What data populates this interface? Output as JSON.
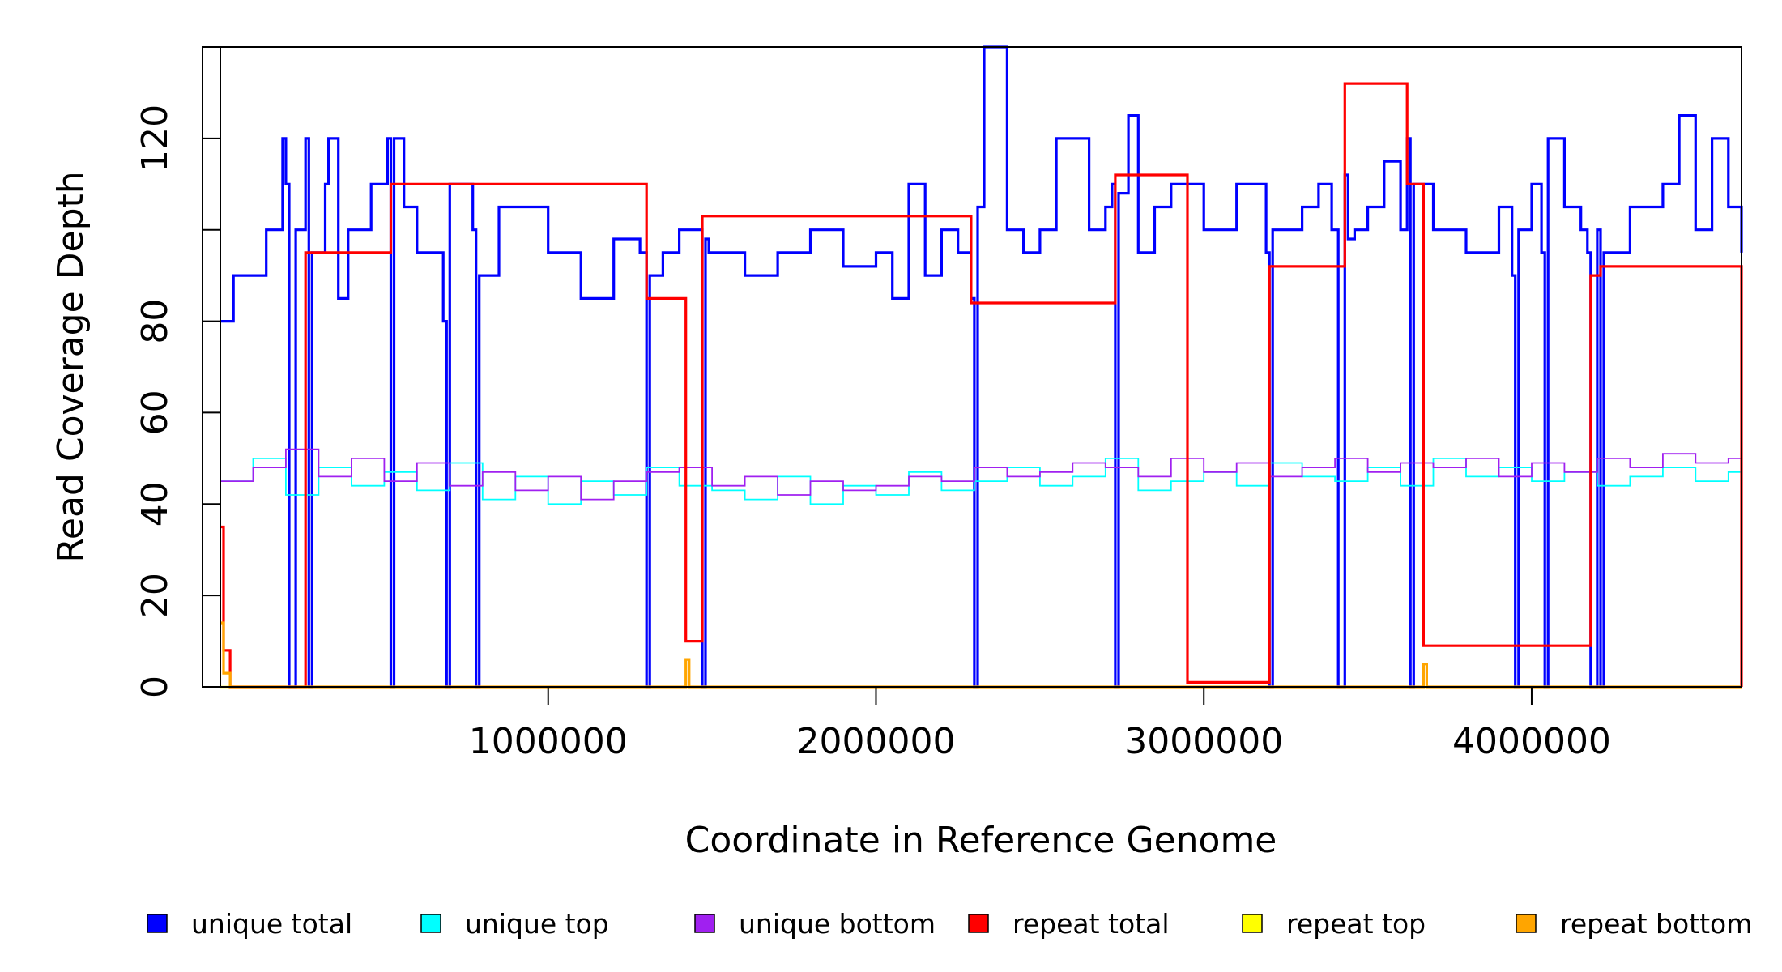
{
  "chart_data": {
    "type": "line",
    "title": "",
    "xlabel": "Coordinate in Reference Genome",
    "ylabel": "Read Coverage Depth",
    "xlim": [
      0,
      4640000
    ],
    "ylim": [
      0,
      140
    ],
    "x_ticks": [
      1000000,
      2000000,
      3000000,
      4000000
    ],
    "x_tick_labels": [
      "1000000",
      "2000000",
      "3000000",
      "4000000"
    ],
    "y_ticks": [
      0,
      20,
      40,
      60,
      80,
      100,
      120,
      140
    ],
    "y_tick_labels": [
      "0",
      "20",
      "40",
      "60",
      "80",
      "",
      "120",
      ""
    ],
    "grid": false,
    "legend_position": "bottom",
    "colors": {
      "unique_total": "#0000ff",
      "unique_top": "#00ffff",
      "unique_bottom": "#a020f0",
      "repeat_total": "#ff0000",
      "repeat_top": "#ffff00",
      "repeat_bottom": "#ffa500"
    },
    "series_order": [
      "unique_total",
      "unique_top",
      "unique_bottom",
      "repeat_total",
      "repeat_top",
      "repeat_bottom"
    ],
    "legend": [
      {
        "key": "unique_total",
        "label": "unique total"
      },
      {
        "key": "unique_top",
        "label": "unique top"
      },
      {
        "key": "unique_bottom",
        "label": "unique bottom"
      },
      {
        "key": "repeat_total",
        "label": "repeat total"
      },
      {
        "key": "repeat_top",
        "label": "repeat top"
      },
      {
        "key": "repeat_bottom",
        "label": "repeat bottom"
      }
    ],
    "series": [
      {
        "name": "unique total",
        "key": "unique_total",
        "x": [
          0,
          40000,
          140000,
          190000,
          200000,
          210000,
          230000,
          260000,
          270000,
          280000,
          320000,
          330000,
          360000,
          390000,
          460000,
          510000,
          520000,
          530000,
          560000,
          600000,
          680000,
          690000,
          700000,
          770000,
          780000,
          790000,
          850000,
          1000000,
          1100000,
          1200000,
          1280000,
          1300000,
          1310000,
          1350000,
          1400000,
          1470000,
          1480000,
          1490000,
          1600000,
          1700000,
          1800000,
          1900000,
          2000000,
          2050000,
          2100000,
          2150000,
          2200000,
          2250000,
          2290000,
          2300000,
          2310000,
          2330000,
          2400000,
          2450000,
          2500000,
          2550000,
          2650000,
          2700000,
          2720000,
          2730000,
          2740000,
          2770000,
          2800000,
          2850000,
          2900000,
          3000000,
          3100000,
          3190000,
          3200000,
          3210000,
          3300000,
          3350000,
          3390000,
          3410000,
          3430000,
          3440000,
          3460000,
          3500000,
          3550000,
          3600000,
          3620000,
          3630000,
          3640000,
          3700000,
          3800000,
          3900000,
          3940000,
          3950000,
          3960000,
          4000000,
          4030000,
          4040000,
          4050000,
          4100000,
          4150000,
          4170000,
          4180000,
          4200000,
          4210000,
          4220000,
          4300000,
          4400000,
          4450000,
          4500000,
          4550000,
          4600000,
          4640000
        ],
        "y": [
          80,
          90,
          100,
          120,
          110,
          0,
          100,
          120,
          0,
          95,
          110,
          120,
          85,
          100,
          110,
          120,
          0,
          120,
          105,
          95,
          80,
          0,
          110,
          100,
          0,
          90,
          105,
          95,
          85,
          98,
          95,
          0,
          90,
          95,
          100,
          0,
          98,
          95,
          90,
          95,
          100,
          92,
          95,
          85,
          110,
          90,
          100,
          95,
          85,
          0,
          105,
          140,
          100,
          95,
          100,
          120,
          100,
          105,
          110,
          0,
          108,
          125,
          95,
          105,
          110,
          100,
          110,
          95,
          0,
          100,
          105,
          110,
          100,
          0,
          112,
          98,
          100,
          105,
          115,
          100,
          120,
          0,
          110,
          100,
          95,
          105,
          90,
          0,
          100,
          110,
          95,
          0,
          120,
          105,
          100,
          95,
          0,
          100,
          0,
          95,
          105,
          110,
          125,
          100,
          120,
          105,
          95
        ]
      },
      {
        "name": "unique top",
        "key": "unique_top",
        "x": [
          0,
          100000,
          200000,
          300000,
          400000,
          500000,
          600000,
          700000,
          800000,
          900000,
          1000000,
          1100000,
          1200000,
          1300000,
          1400000,
          1500000,
          1600000,
          1700000,
          1800000,
          1900000,
          2000000,
          2100000,
          2200000,
          2300000,
          2400000,
          2500000,
          2600000,
          2700000,
          2800000,
          2900000,
          3000000,
          3100000,
          3200000,
          3300000,
          3400000,
          3500000,
          3600000,
          3700000,
          3800000,
          3900000,
          4000000,
          4100000,
          4200000,
          4300000,
          4400000,
          4500000,
          4600000,
          4640000
        ],
        "y": [
          45,
          50,
          42,
          48,
          44,
          47,
          43,
          49,
          41,
          46,
          40,
          45,
          42,
          48,
          44,
          43,
          41,
          46,
          40,
          44,
          42,
          47,
          43,
          45,
          48,
          44,
          46,
          50,
          43,
          45,
          47,
          44,
          49,
          46,
          45,
          48,
          44,
          50,
          46,
          48,
          45,
          47,
          44,
          46,
          48,
          45,
          47,
          46
        ]
      },
      {
        "name": "unique bottom",
        "key": "unique_bottom",
        "x": [
          0,
          100000,
          200000,
          300000,
          400000,
          500000,
          600000,
          700000,
          800000,
          900000,
          1000000,
          1100000,
          1200000,
          1300000,
          1400000,
          1500000,
          1600000,
          1700000,
          1800000,
          1900000,
          2000000,
          2100000,
          2200000,
          2300000,
          2400000,
          2500000,
          2600000,
          2700000,
          2800000,
          2900000,
          3000000,
          3100000,
          3200000,
          3300000,
          3400000,
          3500000,
          3600000,
          3700000,
          3800000,
          3900000,
          4000000,
          4100000,
          4200000,
          4300000,
          4400000,
          4500000,
          4600000,
          4640000
        ],
        "y": [
          45,
          48,
          52,
          46,
          50,
          45,
          49,
          44,
          47,
          43,
          46,
          41,
          45,
          47,
          48,
          44,
          46,
          42,
          45,
          43,
          44,
          46,
          45,
          48,
          46,
          47,
          49,
          48,
          46,
          50,
          47,
          49,
          46,
          48,
          50,
          47,
          49,
          48,
          50,
          46,
          49,
          47,
          50,
          48,
          51,
          49,
          50,
          48
        ]
      },
      {
        "name": "repeat total",
        "key": "repeat_total",
        "x": [
          0,
          10000,
          30000,
          260000,
          520000,
          1300000,
          1420000,
          1470000,
          2290000,
          2730000,
          2950000,
          3200000,
          3430000,
          3620000,
          3670000,
          4180000,
          4210000,
          4640000
        ],
        "y": [
          35,
          8,
          0,
          95,
          110,
          85,
          10,
          103,
          84,
          112,
          1,
          92,
          132,
          110,
          9,
          90,
          92,
          0
        ]
      },
      {
        "name": "repeat top",
        "key": "repeat_top",
        "x": [
          0,
          4640000
        ],
        "y": [
          0,
          0
        ]
      },
      {
        "name": "repeat bottom",
        "key": "repeat_bottom",
        "x": [
          0,
          10000,
          30000,
          1420000,
          1430000,
          3670000,
          3680000,
          4640000
        ],
        "y": [
          14,
          3,
          0,
          6,
          0,
          5,
          0,
          0
        ]
      }
    ]
  }
}
